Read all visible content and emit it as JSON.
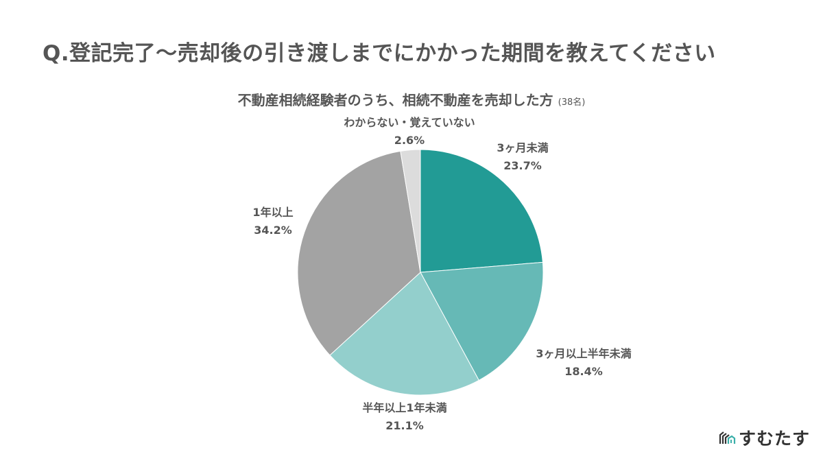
{
  "header": {
    "title": "Q.登記完了〜売却後の引き渡しまでにかかった期間を教えてください",
    "subtitle": "不動産相続経験者のうち、相続不動産を売却した方",
    "sample_size": "(38名)"
  },
  "brand": {
    "name": "すむたす",
    "icon": "building-logo-icon"
  },
  "chart_data": {
    "type": "pie",
    "title": "Q.登記完了〜売却後の引き渡しまでにかかった期間を教えてください",
    "subtitle": "不動産相続経験者のうち、相続不動産を売却した方 (38名)",
    "start_angle": "12 o'clock, clockwise",
    "categories": [
      "3ヶ月未満",
      "3ヶ月以上半年未満",
      "半年以上1年未満",
      "1年以上",
      "わからない・覚えていない"
    ],
    "values": [
      23.7,
      18.4,
      21.1,
      34.2,
      2.6
    ],
    "colors": [
      "#229B95",
      "#66B9B6",
      "#93CFCC",
      "#A3A3A3",
      "#DCDCDC"
    ],
    "unit": "%",
    "legend": "none (direct labels)"
  },
  "labels": [
    {
      "name": "3ヶ月未満",
      "pct": "23.7%"
    },
    {
      "name": "3ヶ月以上半年未満",
      "pct": "18.4%"
    },
    {
      "name": "半年以上1年未満",
      "pct": "21.1%"
    },
    {
      "name": "1年以上",
      "pct": "34.2%"
    },
    {
      "name": "わからない・覚えていない",
      "pct": "2.6%"
    }
  ]
}
